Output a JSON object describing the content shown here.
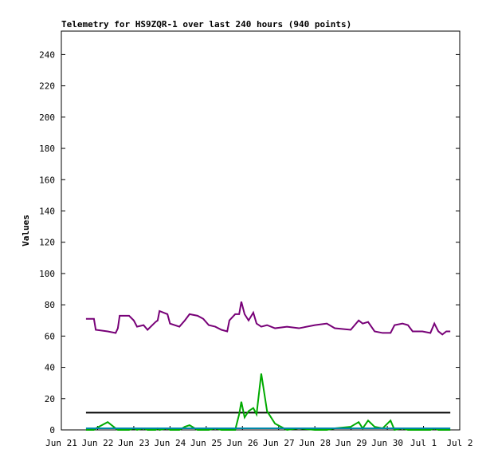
{
  "chart_data": {
    "type": "line",
    "title": "Telemetry for HS9ZQR-1 over last 240 hours (940 points)",
    "y_label": "Values",
    "x": [
      0.68,
      0.9,
      0.95,
      1.28,
      1.5,
      1.56,
      1.61,
      1.87,
      2.0,
      2.09,
      2.27,
      2.38,
      2.6,
      2.66,
      2.71,
      2.93,
      3.0,
      3.26,
      3.41,
      3.54,
      3.76,
      3.92,
      4.07,
      4.25,
      4.42,
      4.58,
      4.64,
      4.8,
      4.91,
      4.97,
      5.06,
      5.17,
      5.3,
      5.39,
      5.52,
      5.68,
      5.9,
      6.23,
      6.56,
      7.0,
      7.33,
      7.55,
      7.99,
      8.21,
      8.32,
      8.47,
      8.65,
      8.87,
      9.09,
      9.2,
      9.42,
      9.57,
      9.7,
      9.97,
      10.19,
      10.3,
      10.41,
      10.52,
      10.63,
      10.74
    ],
    "series": [
      {
        "color": "#770077",
        "values": [
          71,
          71,
          64,
          63,
          62,
          65,
          73,
          73,
          70,
          66,
          67,
          64,
          69,
          70,
          76,
          74,
          68,
          66,
          70,
          74,
          73,
          71,
          67,
          66,
          64,
          63,
          70,
          74,
          74,
          82,
          74,
          70,
          75,
          68,
          66,
          67,
          65,
          66,
          65,
          67,
          68,
          65,
          64,
          70,
          68,
          69,
          63,
          62,
          62,
          67,
          68,
          67,
          63,
          63,
          62,
          68,
          63,
          61,
          63,
          63
        ]
      },
      {
        "color": "#000000",
        "values": [
          11,
          11,
          11,
          11,
          11,
          11,
          11,
          11,
          11,
          11,
          11,
          11,
          11,
          11,
          11,
          11,
          11,
          11,
          11,
          11,
          11,
          11,
          11,
          11,
          11,
          11,
          11,
          11,
          11,
          11,
          11,
          11,
          11,
          11,
          11,
          11,
          11,
          11,
          11,
          11,
          11,
          11,
          11,
          11,
          11,
          11,
          11,
          11,
          11,
          11,
          11,
          11,
          11,
          11,
          11,
          11,
          11,
          11,
          11,
          11
        ]
      },
      {
        "color": "#00aa00",
        "values": [
          0,
          0,
          1,
          5,
          1,
          0,
          0,
          0,
          1,
          0,
          1,
          0,
          0,
          1,
          0,
          1,
          0,
          0,
          2,
          3,
          0,
          0,
          0,
          1,
          0,
          0,
          0,
          0,
          10,
          18,
          8,
          12,
          14,
          10,
          36,
          12,
          4,
          0,
          1,
          0,
          0,
          1,
          2,
          5,
          1,
          6,
          2,
          1,
          6,
          0,
          1,
          0,
          0,
          0,
          0,
          1,
          0,
          0,
          0,
          0
        ]
      },
      {
        "color": "#0088aa",
        "values": [
          1,
          1,
          1,
          1,
          1,
          1,
          1,
          1,
          1,
          1,
          1,
          1,
          1,
          1,
          1,
          1,
          1,
          1,
          1,
          1,
          1,
          1,
          1,
          1,
          1,
          1,
          1,
          1,
          1,
          1,
          1,
          1,
          1,
          1,
          1,
          1,
          1,
          1,
          1,
          1,
          1,
          1,
          1,
          1,
          1,
          1,
          1,
          1,
          1,
          1,
          1,
          1,
          1,
          1,
          1,
          1,
          1,
          1,
          1,
          1
        ]
      }
    ],
    "xlim": [
      0,
      11
    ],
    "xticks": [
      {
        "value": 0,
        "label": "Jun 21"
      },
      {
        "value": 1,
        "label": "Jun 22"
      },
      {
        "value": 2,
        "label": "Jun 23"
      },
      {
        "value": 3,
        "label": "Jun 24"
      },
      {
        "value": 4,
        "label": "Jun 25"
      },
      {
        "value": 5,
        "label": "Jun 26"
      },
      {
        "value": 6,
        "label": "Jun 27"
      },
      {
        "value": 7,
        "label": "Jun 28"
      },
      {
        "value": 8,
        "label": "Jun 29"
      },
      {
        "value": 9,
        "label": "Jun 30"
      },
      {
        "value": 10,
        "label": "Jul 1"
      },
      {
        "value": 11,
        "label": "Jul 2"
      }
    ],
    "ylim": [
      0,
      255
    ],
    "yticks": [
      0,
      20,
      40,
      60,
      80,
      100,
      120,
      140,
      160,
      180,
      200,
      220,
      240
    ]
  }
}
